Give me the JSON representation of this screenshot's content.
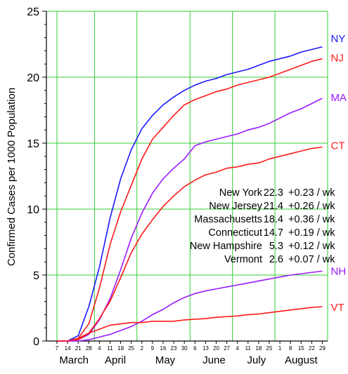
{
  "chart_data": {
    "type": "line",
    "ylabel": "Confirmed Cases per 1000 Population",
    "xlabel": "",
    "ylim": [
      0,
      25
    ],
    "yticks": [
      0,
      5,
      10,
      15,
      20,
      25
    ],
    "x_days": [
      "7",
      "14",
      "21",
      "28",
      "4",
      "11",
      "18",
      "25",
      "2",
      "9",
      "16",
      "23",
      "30",
      "6",
      "13",
      "20",
      "27",
      "4",
      "11",
      "18",
      "25",
      "1",
      "8",
      "15",
      "22",
      "29"
    ],
    "months": [
      "March",
      "April",
      "May",
      "June",
      "July",
      "August"
    ],
    "grid": true,
    "series": [
      {
        "name": "NY",
        "color": "#1a1aff",
        "values": [
          0,
          0,
          0.4,
          2.6,
          5.6,
          9.3,
          12.3,
          14.5,
          16.1,
          17.1,
          17.9,
          18.5,
          19.0,
          19.4,
          19.7,
          19.9,
          20.2,
          20.4,
          20.6,
          20.9,
          21.2,
          21.4,
          21.6,
          21.9,
          22.1,
          22.3
        ]
      },
      {
        "name": "NJ",
        "color": "#ff1a1a",
        "values": [
          0,
          0,
          0.2,
          1.3,
          4.0,
          7.3,
          9.8,
          11.8,
          13.8,
          15.3,
          16.2,
          17.1,
          17.9,
          18.3,
          18.6,
          18.9,
          19.1,
          19.4,
          19.6,
          19.8,
          20.0,
          20.3,
          20.6,
          20.9,
          21.2,
          21.4
        ]
      },
      {
        "name": "MA",
        "color": "#9b1aff",
        "values": [
          0,
          0,
          0.1,
          0.5,
          1.6,
          3.2,
          5.4,
          7.8,
          9.7,
          11.2,
          12.3,
          13.1,
          13.8,
          14.8,
          15.1,
          15.3,
          15.5,
          15.7,
          16.0,
          16.2,
          16.5,
          16.9,
          17.3,
          17.6,
          18.0,
          18.4
        ]
      },
      {
        "name": "CT",
        "color": "#ff1a1a",
        "values": [
          0,
          0,
          0.1,
          0.6,
          1.7,
          3.0,
          4.8,
          6.7,
          8.1,
          9.2,
          10.2,
          11.0,
          11.7,
          12.2,
          12.6,
          12.8,
          13.1,
          13.2,
          13.4,
          13.5,
          13.8,
          14.0,
          14.2,
          14.4,
          14.6,
          14.7
        ]
      },
      {
        "name": "NH",
        "color": "#9b1aff",
        "values": [
          0,
          0,
          0.0,
          0.1,
          0.3,
          0.5,
          0.8,
          1.1,
          1.5,
          2.0,
          2.4,
          2.9,
          3.3,
          3.6,
          3.8,
          3.95,
          4.1,
          4.25,
          4.4,
          4.55,
          4.7,
          4.85,
          5.0,
          5.1,
          5.2,
          5.3
        ]
      },
      {
        "name": "VT",
        "color": "#ff1a1a",
        "values": [
          0,
          0,
          0.2,
          0.6,
          0.9,
          1.2,
          1.3,
          1.4,
          1.4,
          1.5,
          1.5,
          1.5,
          1.6,
          1.65,
          1.7,
          1.8,
          1.85,
          1.9,
          2.0,
          2.05,
          2.15,
          2.25,
          2.35,
          2.45,
          2.55,
          2.6
        ]
      }
    ],
    "annotation_table": [
      {
        "state": "New York",
        "value": "22.3",
        "rate": "+0.23 / wk"
      },
      {
        "state": "New Jersey",
        "value": "21.4",
        "rate": "+0.26 / wk"
      },
      {
        "state": "Massachusetts",
        "value": "18.4",
        "rate": "+0.36 / wk"
      },
      {
        "state": "Connecticut",
        "value": "14.7",
        "rate": "+0.19 / wk"
      },
      {
        "state": "New Hampshire",
        "value": "5.3",
        "rate": "+0.12 / wk"
      },
      {
        "state": "Vermont",
        "value": "2.6",
        "rate": "+0.07 / wk"
      }
    ],
    "grid_color": "#33cc33"
  }
}
